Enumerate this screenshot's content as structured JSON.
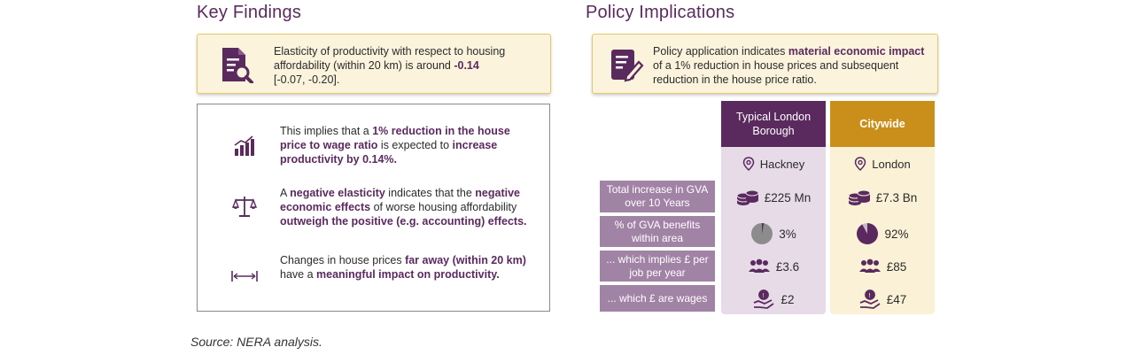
{
  "key_findings": {
    "title": "Key Findings",
    "callout": {
      "line1": "Elasticity of productivity with respect to housing",
      "line2_pre": "affordability (within 20 km) is around ",
      "line2_bold": "-0.14",
      "line3": "[-0.07, -0.20]."
    },
    "findings": [
      {
        "icon": "bar-chart-icon",
        "p1": "This implies that a ",
        "b1": "1% reduction in the house price to wage ratio",
        "p2": " is expected to ",
        "b2": "increase productivity by 0.14%."
      },
      {
        "icon": "balance-scale-icon",
        "p1": "A ",
        "b1": "negative elasticity",
        "p2": " indicates that the ",
        "b2": "negative economic effects",
        "p3": " of worse housing affordability ",
        "b3": "outweigh the positive (e.g. accounting) effects."
      },
      {
        "icon": "distance-icon",
        "p1": "Changes in house prices ",
        "b1": "far away (within 20 km)",
        "p2": " have a ",
        "b2": "meaningful impact on productivity."
      }
    ]
  },
  "policy": {
    "title": "Policy Implications",
    "callout": {
      "p1": "Policy application indicates ",
      "b1": "material economic impact",
      "p2": " of a 1% reduction in house prices and subsequent reduction in the house price ratio."
    },
    "columns": [
      {
        "header": "Typical London Borough",
        "location": "Hackney"
      },
      {
        "header": "Citywide",
        "location": "London"
      }
    ],
    "rows": [
      {
        "label": "Total increase in GVA over 10 Years",
        "icon": "coins-icon",
        "values": [
          "£225 Mn",
          "£7.3 Bn"
        ]
      },
      {
        "label": "% of GVA benefits within area",
        "icon": "pie-icon",
        "values": [
          "3%",
          "92%"
        ],
        "fractions": [
          0.03,
          0.92
        ]
      },
      {
        "label": "... which implies £ per job per year",
        "icon": "people-icon",
        "values": [
          "£3.6",
          "£85"
        ]
      },
      {
        "label": "... which £ are wages",
        "icon": "hand-coin-icon",
        "values": [
          "£2",
          "£47"
        ]
      }
    ]
  },
  "source": "Source: NERA analysis.",
  "colors": {
    "purple": "#5a2a5e",
    "gold": "#c98f1a",
    "label": "#a183a5"
  }
}
